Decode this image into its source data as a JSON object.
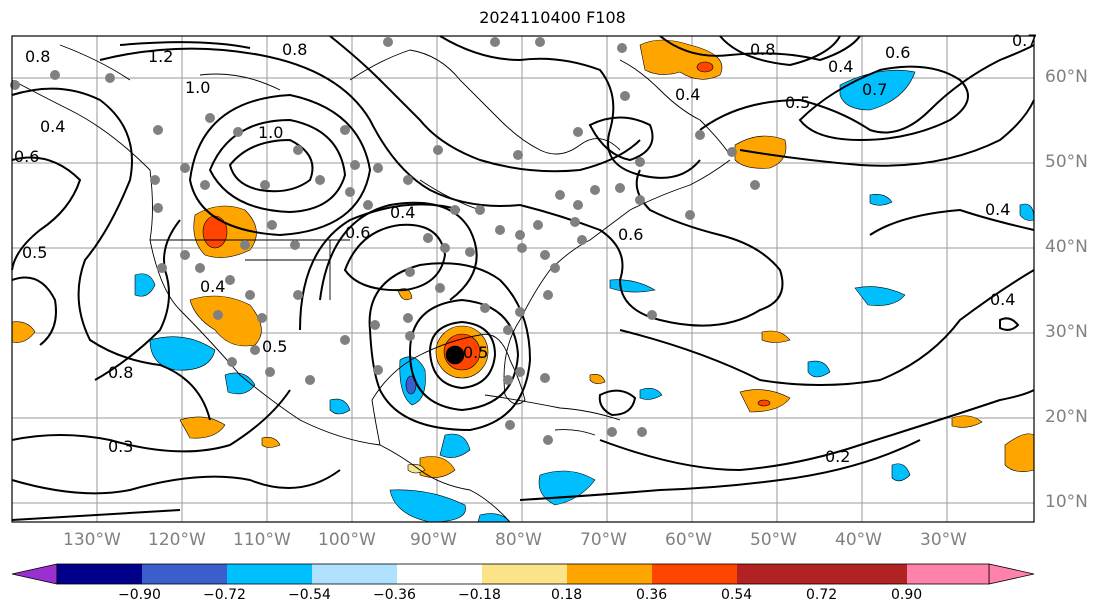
{
  "title": "2024110400 F108",
  "lon_labels": [
    "130°W",
    "120°W",
    "110°W",
    "100°W",
    "90°W",
    "80°W",
    "70°W",
    "60°W",
    "50°W",
    "40°W",
    "30°W"
  ],
  "lat_labels": [
    "60°N",
    "50°N",
    "40°N",
    "30°N",
    "20°N",
    "10°N"
  ],
  "contour_labels": [
    "1.2",
    "0.8",
    "0.8",
    "0.7",
    "1.0",
    "0.8",
    "0.4",
    "0.6",
    "0.5",
    "1.0",
    "0.6",
    "0.4",
    "0.6",
    "0.5",
    "0.4",
    "0.4",
    "0.5",
    "0.8",
    "0.4",
    "0.7",
    "0.6",
    "0.3",
    "0.2",
    "0.4",
    "0.5",
    "0.4"
  ],
  "colorbar": {
    "colors": [
      "#9b30d0",
      "#00008b",
      "#3a5fcd",
      "#00bfff",
      "#b0e2ff",
      "#ffffff",
      "#fbe38a",
      "#ffa500",
      "#ff4500",
      "#b22222",
      "#ff82ab"
    ],
    "ticks": [
      "−0.90",
      "−0.72",
      "−0.54",
      "−0.36",
      "−0.18",
      "0.18",
      "0.36",
      "0.54",
      "0.72",
      "0.90"
    ]
  }
}
